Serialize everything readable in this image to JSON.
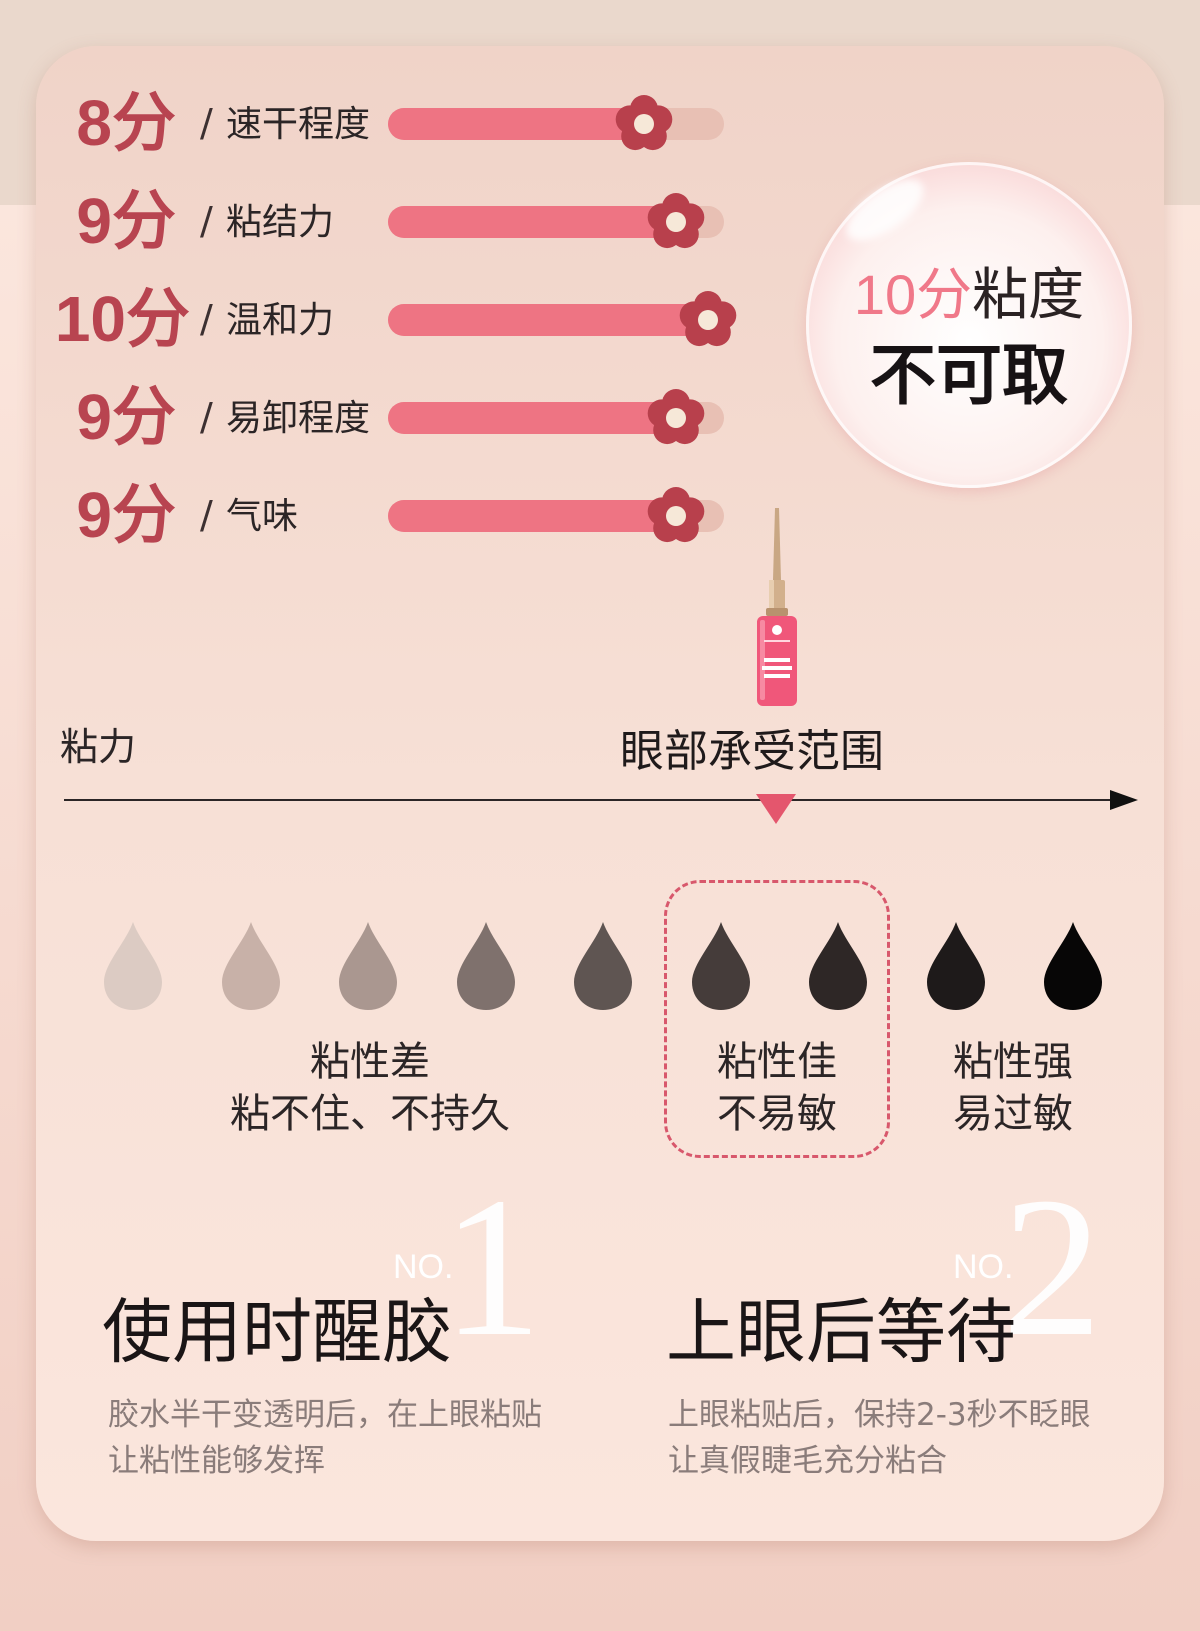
{
  "ratings": [
    {
      "score": "8分",
      "label": "速干程度",
      "level": 0.8
    },
    {
      "score": "9分",
      "label": "粘结力",
      "level": 0.9
    },
    {
      "score": "10分",
      "label": "温和力",
      "level": 1.0
    },
    {
      "score": "9分",
      "label": "易卸程度",
      "level": 0.9
    },
    {
      "score": "9分",
      "label": "气味",
      "level": 0.9
    }
  ],
  "separator": "/",
  "bubble": {
    "line1_accent": "10分",
    "line1_rest": "粘度",
    "line2": "不可取"
  },
  "axis": {
    "left_label": "粘力",
    "center_label": "眼部承受范围"
  },
  "drops": {
    "colors": [
      "#dccbc3",
      "#c8b1a8",
      "#aa9790",
      "#7f716d",
      "#5f5552",
      "#453c3a",
      "#2e2726",
      "#1e1a1a",
      "#070606"
    ],
    "groups": [
      {
        "line1": "粘性差",
        "line2": "粘不住、不持久"
      },
      {
        "line1": "粘性佳",
        "line2": "不易敏"
      },
      {
        "line1": "粘性强",
        "line2": "易过敏"
      }
    ]
  },
  "accent_colors": {
    "bar_fill": "#ee7483",
    "bar_track": "#e8c0b4",
    "score": "#b84450",
    "flower": "#b8404c",
    "dash": "#d8586c"
  },
  "steps": [
    {
      "no": "NO.",
      "number": "1",
      "title": "使用时醒胶",
      "desc1": "胶水半干变透明后，在上眼粘贴",
      "desc2": "让粘性能够发挥"
    },
    {
      "no": "NO.",
      "number": "2",
      "title": "上眼后等待",
      "desc1": "上眼粘贴后，保持2-3秒不眨眼",
      "desc2": "让真假睫毛充分粘合"
    }
  ]
}
